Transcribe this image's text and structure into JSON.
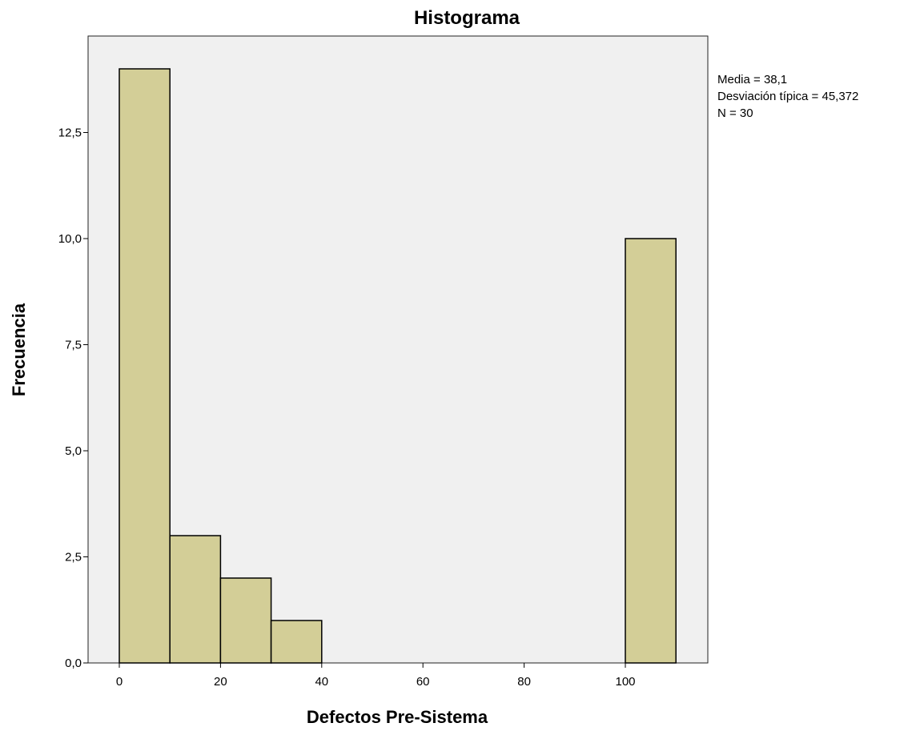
{
  "chart_data": {
    "type": "bar",
    "subtype": "histogram",
    "title": "Histograma",
    "xlabel": "Defectos Pre-Sistema",
    "ylabel": "Frecuencia",
    "bins": [
      {
        "from": 0,
        "to": 10,
        "count": 14
      },
      {
        "from": 10,
        "to": 20,
        "count": 3
      },
      {
        "from": 20,
        "to": 30,
        "count": 2
      },
      {
        "from": 30,
        "to": 40,
        "count": 1
      },
      {
        "from": 100,
        "to": 110,
        "count": 10
      }
    ],
    "xlim": [
      -6,
      116
    ],
    "ylim": [
      0,
      15
    ],
    "x_ticks": [
      0,
      20,
      40,
      60,
      80,
      100
    ],
    "x_tick_labels": [
      "0",
      "20",
      "40",
      "60",
      "80",
      "100"
    ],
    "y_ticks": [
      0,
      2.5,
      5,
      7.5,
      10,
      12.5
    ],
    "y_tick_labels": [
      "0,0",
      "2,5",
      "5,0",
      "7,5",
      "10,0",
      "12,5"
    ],
    "grid": false,
    "colors": {
      "plot_background": "#f0f0f0",
      "bar_fill": "#d3ce97",
      "bar_stroke": "#000000"
    },
    "stats": {
      "mean": "Media = 38,1",
      "std_dev": "Desviación típica = 45,372",
      "n": "N = 30"
    }
  }
}
